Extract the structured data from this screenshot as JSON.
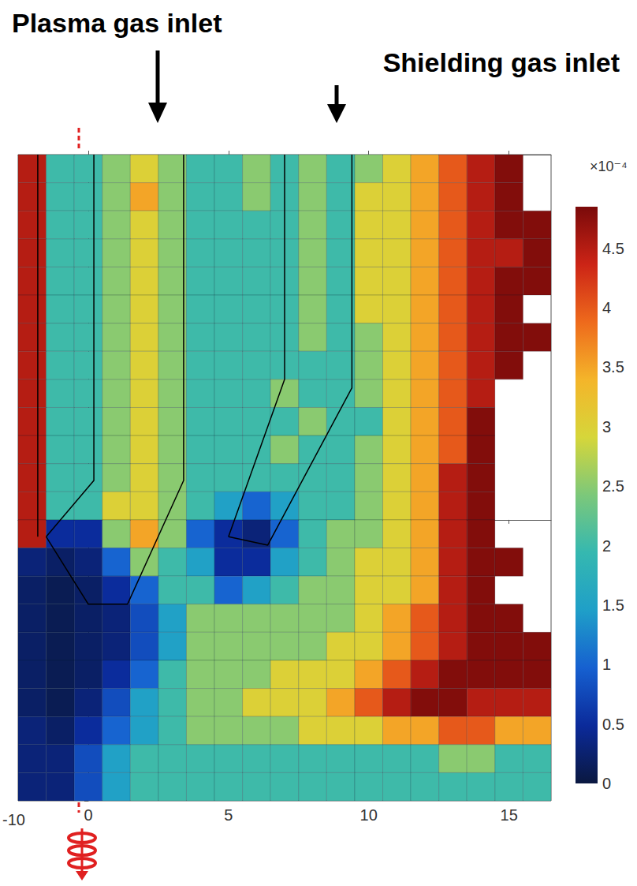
{
  "chart_data": {
    "type": "heatmap",
    "annotations": [
      "Plasma gas inlet",
      "Shielding gas inlet"
    ],
    "xlim": [
      -2.5,
      16.5
    ],
    "xticks": [
      0,
      5,
      10,
      15
    ],
    "ylim": [
      -10,
      13
    ],
    "yticks": [
      -10
    ],
    "x": [
      -2,
      -1,
      0,
      1,
      2,
      3,
      4,
      5,
      6,
      7,
      8,
      9,
      10,
      11,
      12,
      13,
      14,
      15,
      16
    ],
    "y": [
      12.5,
      11.5,
      10.5,
      9.5,
      8.5,
      7.5,
      6.5,
      5.5,
      4.5,
      3.5,
      2.5,
      1.5,
      0.5,
      -0.5,
      -1.5,
      -2.5,
      -3.5,
      -4.5,
      -5.5,
      -6.5,
      -7.5,
      -8.5,
      -9.5
    ],
    "values": [
      [
        4.5,
        2,
        2,
        2.5,
        3,
        2.5,
        2,
        2,
        2.5,
        2,
        2.5,
        2,
        2.5,
        3,
        3.5,
        4,
        4.5,
        4.8,
        null
      ],
      [
        4.5,
        2,
        2,
        2.5,
        3.5,
        2.5,
        2,
        2,
        2.5,
        2,
        2.5,
        2,
        3,
        3,
        3.5,
        4,
        4.5,
        4.8,
        null
      ],
      [
        4.5,
        2,
        2,
        2.5,
        3,
        2.5,
        2,
        2,
        2,
        2,
        2.5,
        2,
        3,
        3,
        3.5,
        4,
        4.5,
        4.8,
        4.8
      ],
      [
        4.5,
        2,
        2,
        2.5,
        3,
        2.5,
        2,
        2,
        2,
        2,
        2.5,
        2,
        3,
        3,
        3.5,
        4,
        4.5,
        4.5,
        4.8
      ],
      [
        4.5,
        2,
        2,
        2.5,
        3,
        2.5,
        2,
        2,
        2,
        2,
        2.5,
        2,
        3,
        3,
        3.5,
        4,
        4.5,
        4.8,
        4.8
      ],
      [
        4.5,
        2,
        2,
        2.5,
        3,
        2.5,
        2,
        2,
        2,
        2,
        2.5,
        2,
        3,
        3,
        3.5,
        4,
        4.5,
        4.8,
        null
      ],
      [
        4.5,
        2,
        2,
        2.5,
        3,
        2.5,
        2,
        2,
        2,
        2,
        2.5,
        2,
        2.5,
        3,
        3.5,
        4,
        4.5,
        4.8,
        4.8
      ],
      [
        4.5,
        2,
        2,
        2.5,
        3,
        2.5,
        2,
        2,
        2,
        2,
        2,
        2,
        2.5,
        3,
        3.5,
        4,
        4.5,
        4.8,
        null
      ],
      [
        4.5,
        2,
        2,
        2.5,
        3,
        2.5,
        2,
        2,
        2,
        2.5,
        2,
        2,
        2.5,
        3,
        3.5,
        4,
        4.5,
        null,
        null
      ],
      [
        4.5,
        2,
        2,
        2.5,
        3,
        2.5,
        2,
        2,
        2,
        2,
        2.5,
        2,
        2,
        3,
        3.5,
        4,
        4.8,
        null,
        null
      ],
      [
        4.5,
        2,
        2,
        2.5,
        3,
        2.5,
        2,
        2,
        2,
        2.5,
        2,
        2,
        2.5,
        3,
        3.5,
        4,
        4.8,
        null,
        null
      ],
      [
        4.5,
        2,
        2,
        2.5,
        3,
        2.5,
        2,
        2,
        2,
        2,
        2,
        2,
        2.5,
        3,
        3.5,
        4.5,
        4.8,
        null,
        null
      ],
      [
        4.5,
        2,
        2,
        3,
        3,
        2.5,
        2,
        1.5,
        1,
        1.5,
        2,
        2,
        2.5,
        3,
        3.5,
        4.5,
        4.8,
        null,
        null
      ],
      [
        4.5,
        0.5,
        0.5,
        2.5,
        3.5,
        2.5,
        1,
        0.5,
        0.3,
        1,
        2,
        2.5,
        2.5,
        3,
        3.5,
        4.5,
        4.8,
        null,
        null
      ],
      [
        0.3,
        0.2,
        0.3,
        1,
        2.5,
        2,
        1.5,
        0.5,
        0.5,
        1.5,
        2,
        2.5,
        3,
        3,
        3.5,
        4.5,
        4.8,
        4.8,
        null
      ],
      [
        0.2,
        0.1,
        0.2,
        0.5,
        1,
        2,
        2,
        1,
        1.5,
        2,
        2.5,
        2.5,
        3,
        3,
        3.5,
        4.5,
        4.8,
        null,
        null
      ],
      [
        0.2,
        0.1,
        0.2,
        0.3,
        0.8,
        1.5,
        2.5,
        2.5,
        2.5,
        2.5,
        2.5,
        2.5,
        3,
        3.5,
        4,
        4.5,
        4.8,
        4.8,
        null
      ],
      [
        0.2,
        0.1,
        0.2,
        0.3,
        0.8,
        1.5,
        2.5,
        2.5,
        2.5,
        2.5,
        2.5,
        3,
        3,
        3.5,
        4,
        4.5,
        4.8,
        4.8,
        4.8
      ],
      [
        0.2,
        0.1,
        0.2,
        0.5,
        1,
        2,
        2.5,
        2.5,
        2.5,
        3,
        3,
        3,
        3.5,
        4,
        4.5,
        4.8,
        4.8,
        4.8,
        4.8
      ],
      [
        0.2,
        0.1,
        0.3,
        0.8,
        1.5,
        2,
        2.5,
        2.5,
        3,
        3,
        3,
        3.5,
        4,
        4.5,
        4.8,
        4.8,
        4.5,
        4.5,
        4.5
      ],
      [
        0.3,
        0.2,
        0.5,
        1,
        1.5,
        2,
        2.5,
        2.5,
        2.5,
        2.5,
        3,
        3,
        3,
        3.5,
        3.5,
        4,
        4,
        3.5,
        3.5
      ],
      [
        0.3,
        0.3,
        0.8,
        1.5,
        2,
        2,
        2,
        2,
        2,
        2,
        2,
        2,
        2,
        2,
        2,
        2.5,
        2.5,
        2,
        2
      ],
      [
        0.3,
        0.3,
        0.8,
        1.5,
        2,
        2,
        2,
        2,
        2,
        2,
        2,
        2,
        2,
        2,
        2,
        2,
        2,
        2,
        2
      ]
    ],
    "colorbar": {
      "label": "×10⁻⁴",
      "range": [
        0,
        4.85
      ],
      "ticks": [
        0,
        0.5,
        1,
        1.5,
        2,
        2.5,
        3,
        3.5,
        4,
        4.5
      ]
    },
    "geometry": [
      {
        "x": [
          -1.8,
          -1.8
        ],
        "y": [
          13,
          -0.6
        ]
      },
      {
        "x": [
          0.2,
          0.2,
          -1.5
        ],
        "y": [
          13,
          1.4,
          -0.6
        ]
      },
      {
        "x": [
          3.4,
          3.4,
          1.4,
          0,
          -1.5
        ],
        "y": [
          13,
          1.4,
          -3,
          -3,
          -0.6
        ]
      },
      {
        "x": [
          7,
          7,
          5
        ],
        "y": [
          13,
          5,
          -0.6
        ]
      },
      {
        "x": [
          9.4,
          9.4,
          6.4,
          5
        ],
        "y": [
          13,
          4.7,
          -0.9,
          -0.6
        ]
      }
    ]
  }
}
